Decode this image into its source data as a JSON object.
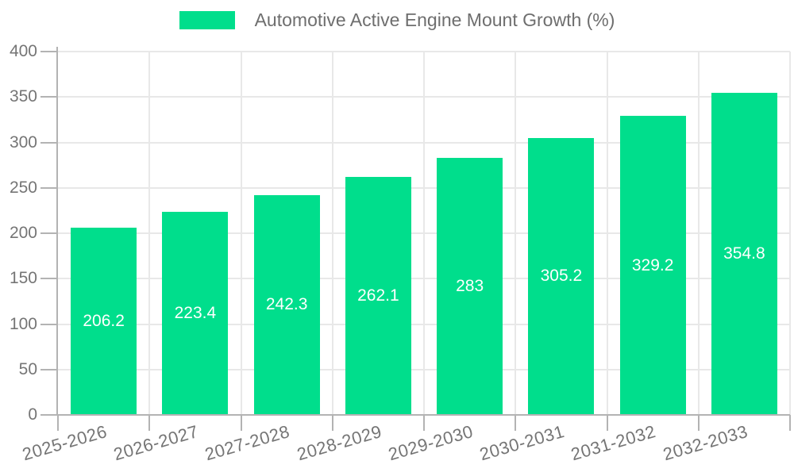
{
  "legend": {
    "label": "Automotive Active Engine Mount Growth (%)"
  },
  "chart_data": {
    "type": "bar",
    "title": "Automotive Active Engine Mount Growth (%)",
    "xlabel": "",
    "ylabel": "",
    "categories": [
      "2025-2026",
      "2026-2027",
      "2027-2028",
      "2028-2029",
      "2029-2030",
      "2030-2031",
      "2031-2032",
      "2032-2033"
    ],
    "values": [
      206.2,
      223.4,
      242.3,
      262.1,
      283,
      305.2,
      329.2,
      354.8
    ],
    "ylim": [
      0,
      400
    ],
    "ytick_step": 50,
    "yticks": [
      0,
      50,
      100,
      150,
      200,
      250,
      300,
      350,
      400
    ],
    "grid": true,
    "legend_position": "top-center",
    "value_labels": "inside-middle",
    "x_label_rotation_deg": -16,
    "colors": {
      "bar": "#00DE8C",
      "value_label": "#FFFFFF",
      "axis": "#B3B3B3",
      "gridline": "#E8E8E8",
      "tick_label": "#757575",
      "legend_text": "#6E6E6E",
      "background": "#FFFFFF"
    }
  }
}
